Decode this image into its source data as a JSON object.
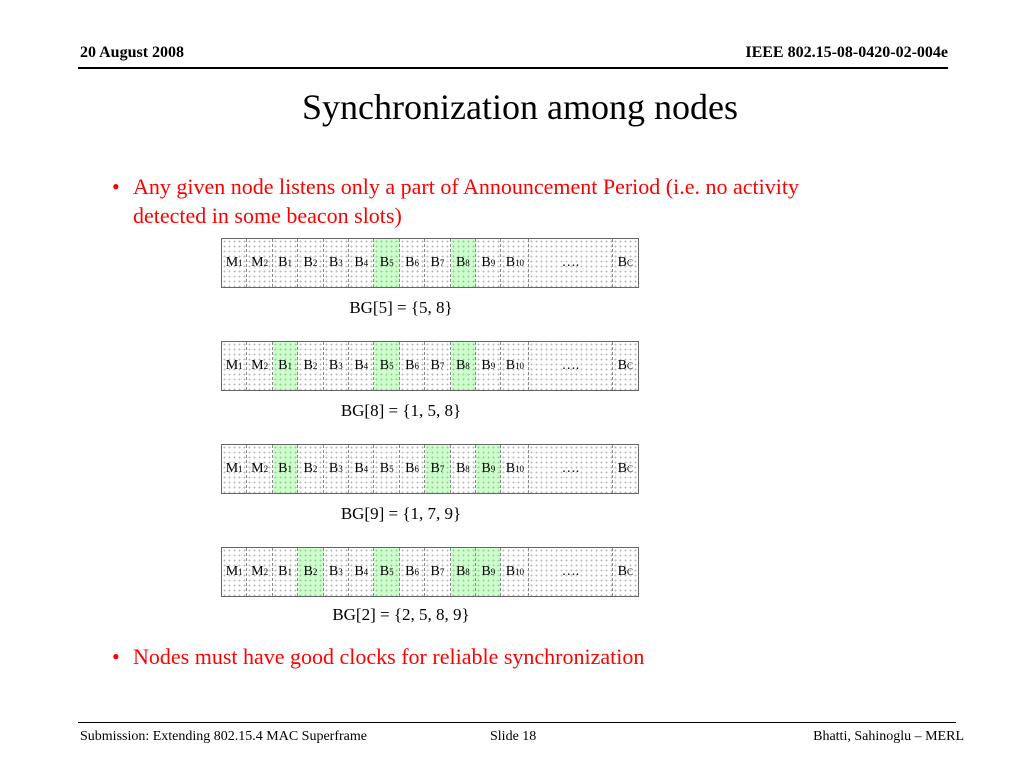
{
  "header": {
    "date": "20 August 2008",
    "doc_id": "IEEE 802.15-08-0420-02-004e"
  },
  "title": "Synchronization among nodes",
  "bullets": [
    "Any given node listens only a part of Announcement Period (i.e. no activity detected in some beacon slots)",
    "Nodes must have good clocks for reliable synchronization"
  ],
  "bullet_symbol": "•",
  "slot_labels": [
    {
      "base": "M",
      "sub": "1"
    },
    {
      "base": "M",
      "sub": "2"
    },
    {
      "base": "B",
      "sub": "1"
    },
    {
      "base": "B",
      "sub": "2"
    },
    {
      "base": "B",
      "sub": "3"
    },
    {
      "base": "B",
      "sub": "4"
    },
    {
      "base": "B",
      "sub": "5"
    },
    {
      "base": "B",
      "sub": "6"
    },
    {
      "base": "B",
      "sub": "7"
    },
    {
      "base": "B",
      "sub": "8"
    },
    {
      "base": "B",
      "sub": "9"
    },
    {
      "base": "B",
      "sub": "10"
    },
    {
      "base": "….",
      "sub": ""
    },
    {
      "base": "B",
      "sub": "C"
    }
  ],
  "diagrams": [
    {
      "caption": "BG[5] = {5, 8}",
      "highlighted_slots": [
        5,
        8
      ]
    },
    {
      "caption": "BG[8] = {1, 5, 8}",
      "highlighted_slots": [
        1,
        5,
        8
      ]
    },
    {
      "caption": "BG[9] = {1, 7, 9}",
      "highlighted_slots": [
        1,
        7,
        9
      ]
    },
    {
      "caption": "BG[2] = {2, 5, 8, 9}",
      "highlighted_slots": [
        2,
        5,
        8,
        9
      ]
    }
  ],
  "colors": {
    "highlight": "#ccffcc",
    "bullet_text": "#ff0000"
  },
  "footer": {
    "submission": "Submission: Extending 802.15.4 MAC Superframe",
    "slide": "Slide 18",
    "authors": "Bhatti, Sahinoglu –  MERL"
  }
}
